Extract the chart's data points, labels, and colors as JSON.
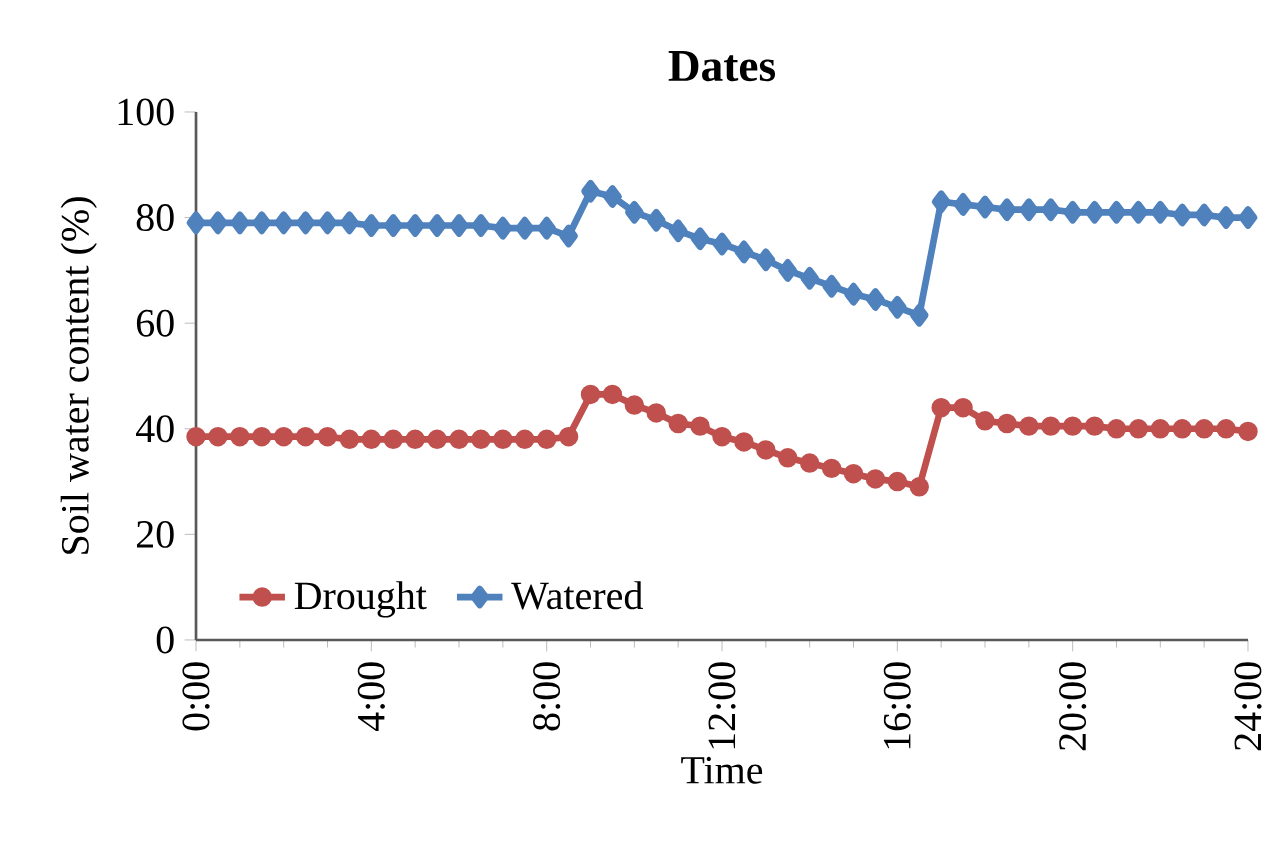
{
  "chart_data": {
    "type": "line",
    "title": "Dates",
    "xlabel": "Time",
    "ylabel": "Soil water content (%)",
    "x": [
      0,
      0.5,
      1,
      1.5,
      2,
      2.5,
      3,
      3.5,
      4,
      4.5,
      5,
      5.5,
      6,
      6.5,
      7,
      7.5,
      8,
      8.5,
      9,
      9.5,
      10,
      10.5,
      11,
      11.5,
      12,
      12.5,
      13,
      13.5,
      14,
      14.5,
      15,
      15.5,
      16,
      16.5,
      17,
      17.5,
      18,
      18.5,
      19,
      19.5,
      20,
      20.5,
      21,
      21.5,
      22,
      22.5,
      23,
      23.5,
      24
    ],
    "series": [
      {
        "name": "Drought",
        "color": "#c0504d",
        "marker": "circle",
        "values": [
          38.5,
          38.5,
          38.5,
          38.5,
          38.5,
          38.5,
          38.5,
          38,
          38,
          38,
          38,
          38,
          38,
          38,
          38,
          38,
          38,
          38.5,
          46.5,
          46.5,
          44.5,
          43,
          41,
          40.5,
          38.5,
          37.5,
          36,
          34.5,
          33.5,
          32.5,
          31.5,
          30.5,
          30,
          29,
          44,
          44,
          41.5,
          41,
          40.5,
          40.5,
          40.5,
          40.5,
          40,
          40,
          40,
          40,
          40,
          40,
          39.5
        ]
      },
      {
        "name": "Watered",
        "color": "#4f81bd",
        "marker": "diamond",
        "values": [
          79,
          79,
          79,
          79,
          79,
          79,
          79,
          79,
          78.5,
          78.5,
          78.5,
          78.5,
          78.5,
          78.5,
          78,
          78,
          78,
          76.5,
          85,
          84,
          81,
          79.5,
          77.5,
          76,
          75,
          73.5,
          72,
          70,
          68.5,
          67,
          65.5,
          64.5,
          63,
          61.5,
          83,
          82.5,
          82,
          81.5,
          81.5,
          81.5,
          81,
          81,
          81,
          81,
          81,
          80.5,
          80.5,
          80,
          80
        ]
      }
    ],
    "xlim": [
      0,
      24
    ],
    "xticks": [
      {
        "value": 0,
        "label": "0:00"
      },
      {
        "value": 4,
        "label": "4:00"
      },
      {
        "value": 8,
        "label": "8:00"
      },
      {
        "value": 12,
        "label": "12:00"
      },
      {
        "value": 16,
        "label": "16:00"
      },
      {
        "value": 20,
        "label": "20:00"
      },
      {
        "value": 24,
        "label": "24:00"
      }
    ],
    "ylim": [
      0,
      100
    ],
    "yticks": [
      0,
      20,
      40,
      60,
      80,
      100
    ],
    "grid": false,
    "legend": "bottom left",
    "line_style": "solid"
  }
}
